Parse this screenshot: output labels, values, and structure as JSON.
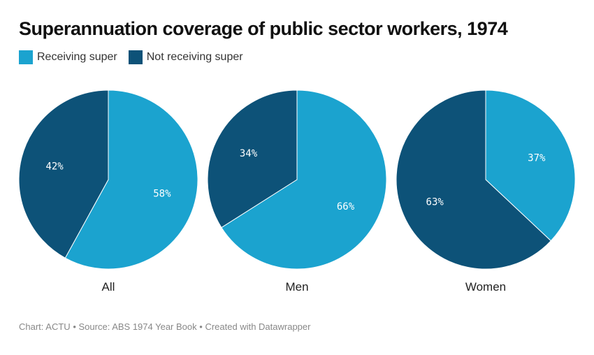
{
  "title": "Superannuation coverage of public sector workers, 1974",
  "legend": [
    {
      "label": "Receiving super",
      "color": "#1ba3cf"
    },
    {
      "label": "Not receiving super",
      "color": "#0d5278"
    }
  ],
  "footer": {
    "chart_label": "Chart: ACTU",
    "source_label": "Source: ABS 1974 Year Book",
    "created_label": "Created with Datawrapper",
    "separator": "•"
  },
  "chart_data": [
    {
      "type": "pie",
      "title": "All",
      "slices": [
        {
          "label": "Receiving super",
          "value": 58,
          "display": "58%"
        },
        {
          "label": "Not receiving super",
          "value": 42,
          "display": "42%"
        }
      ]
    },
    {
      "type": "pie",
      "title": "Men",
      "slices": [
        {
          "label": "Receiving super",
          "value": 66,
          "display": "66%"
        },
        {
          "label": "Not receiving super",
          "value": 34,
          "display": "34%"
        }
      ]
    },
    {
      "type": "pie",
      "title": "Women",
      "slices": [
        {
          "label": "Receiving super",
          "value": 37,
          "display": "37%"
        },
        {
          "label": "Not receiving super",
          "value": 63,
          "display": "63%"
        }
      ]
    }
  ]
}
